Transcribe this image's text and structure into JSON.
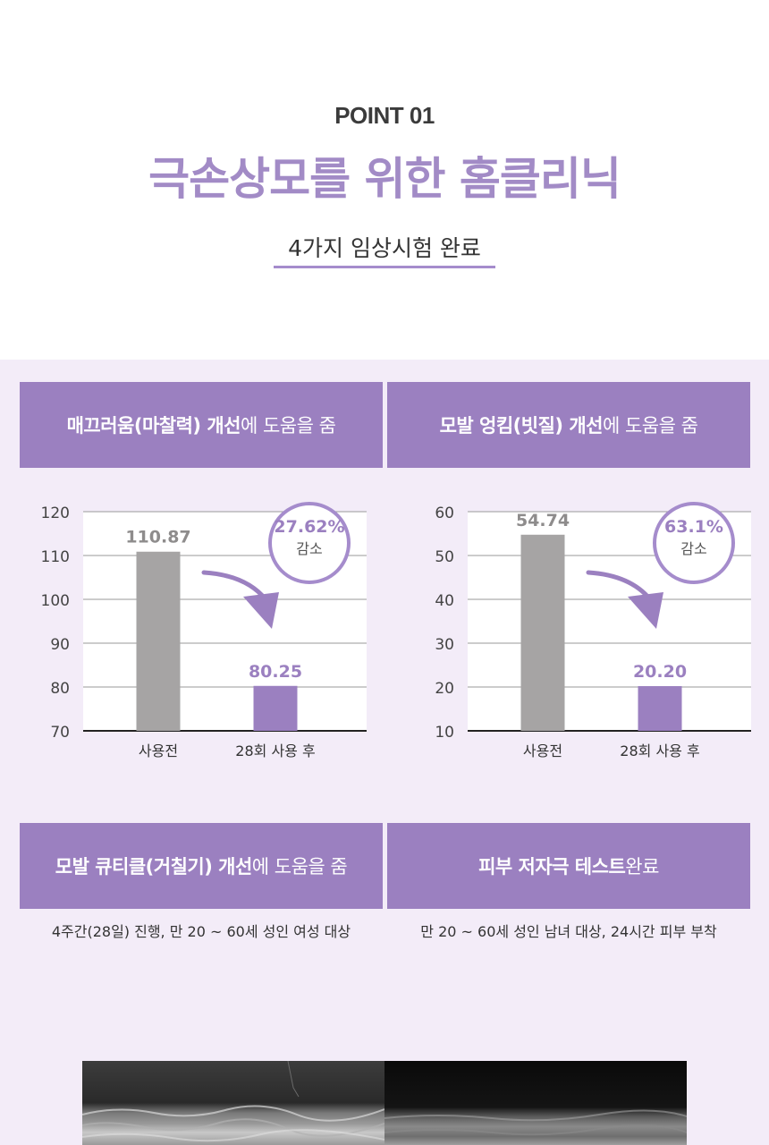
{
  "header": {
    "point": "POINT 01",
    "headline": "극손상모를 위한 홈클리닉",
    "subline": "4가지 임상시험 완료"
  },
  "banners": [
    {
      "bold": "매끄러움(마찰력) 개선",
      "rest": "에 도움을 줌"
    },
    {
      "bold": "모발 엉킴(빗질) 개선",
      "rest": "에 도움을 줌"
    },
    {
      "bold": "모발 큐티클(거칠기) 개선",
      "rest": "에 도움을 줌"
    },
    {
      "bold": "피부 저자극 테스트",
      "rest": " 완료"
    }
  ],
  "captions": [
    "4주간(28일) 진행, 만 20 ~ 60세 성인 여성 대상",
    "만 20 ~ 60세 성인 남녀 대상, 24시간 피부 부착"
  ],
  "colors": {
    "accent": "#9b80c0",
    "headline": "#a28bc6",
    "bar_before": "#a6a4a4",
    "bar_after": "#9b80c0",
    "section_bg": "#f3ecf8"
  },
  "chart_data": [
    {
      "type": "bar",
      "categories": [
        "사용전",
        "28회 사용 후"
      ],
      "values": [
        110.87,
        80.25
      ],
      "value_labels": [
        "110.87",
        "80.25"
      ],
      "yticks": [
        70,
        80,
        90,
        100,
        110,
        120
      ],
      "ylim": [
        70,
        120
      ],
      "grid": true,
      "badge": {
        "value": "27.62%",
        "label": "감소"
      }
    },
    {
      "type": "bar",
      "categories": [
        "사용전",
        "28회 사용 후"
      ],
      "values": [
        54.74,
        20.2
      ],
      "value_labels": [
        "54.74",
        "20.20"
      ],
      "yticks": [
        10,
        20,
        30,
        40,
        50,
        60
      ],
      "ylim": [
        10,
        60
      ],
      "grid": true,
      "badge": {
        "value": "63.1%",
        "label": "감소"
      }
    }
  ]
}
